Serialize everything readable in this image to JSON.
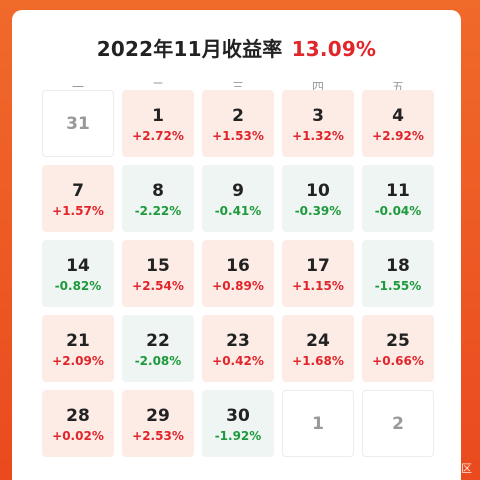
{
  "title": {
    "label": "2022年11月收益率",
    "total": "13.09%"
  },
  "weekdays": [
    "一",
    "二",
    "三",
    "四",
    "五"
  ],
  "cells": [
    {
      "day": "31",
      "pct": "",
      "trend": "empty"
    },
    {
      "day": "1",
      "pct": "+2.72%",
      "trend": "up"
    },
    {
      "day": "2",
      "pct": "+1.53%",
      "trend": "up"
    },
    {
      "day": "3",
      "pct": "+1.32%",
      "trend": "up"
    },
    {
      "day": "4",
      "pct": "+2.92%",
      "trend": "up"
    },
    {
      "day": "7",
      "pct": "+1.57%",
      "trend": "up"
    },
    {
      "day": "8",
      "pct": "-2.22%",
      "trend": "down"
    },
    {
      "day": "9",
      "pct": "-0.41%",
      "trend": "down"
    },
    {
      "day": "10",
      "pct": "-0.39%",
      "trend": "down"
    },
    {
      "day": "11",
      "pct": "-0.04%",
      "trend": "down"
    },
    {
      "day": "14",
      "pct": "-0.82%",
      "trend": "down"
    },
    {
      "day": "15",
      "pct": "+2.54%",
      "trend": "up"
    },
    {
      "day": "16",
      "pct": "+0.89%",
      "trend": "up"
    },
    {
      "day": "17",
      "pct": "+1.15%",
      "trend": "up"
    },
    {
      "day": "18",
      "pct": "-1.55%",
      "trend": "down"
    },
    {
      "day": "21",
      "pct": "+2.09%",
      "trend": "up"
    },
    {
      "day": "22",
      "pct": "-2.08%",
      "trend": "down"
    },
    {
      "day": "23",
      "pct": "+0.42%",
      "trend": "up"
    },
    {
      "day": "24",
      "pct": "+1.68%",
      "trend": "up"
    },
    {
      "day": "25",
      "pct": "+0.66%",
      "trend": "up"
    },
    {
      "day": "28",
      "pct": "+0.02%",
      "trend": "up"
    },
    {
      "day": "29",
      "pct": "+2.53%",
      "trend": "up"
    },
    {
      "day": "30",
      "pct": "-1.92%",
      "trend": "down"
    },
    {
      "day": "1",
      "pct": "",
      "trend": "empty"
    },
    {
      "day": "2",
      "pct": "",
      "trend": "empty"
    }
  ],
  "colors": {
    "up": "#e0252b",
    "down": "#1e9a3c",
    "background": "#ea4a1e"
  },
  "watermark": "@稀土掘金技术社区"
}
